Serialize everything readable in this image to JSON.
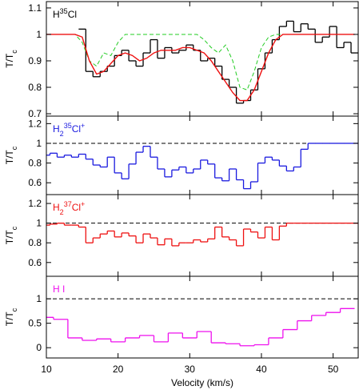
{
  "chart_data": [
    {
      "type": "line",
      "title_parts": [
        {
          "text": "H"
        },
        {
          "text": "35",
          "pos": "sup"
        },
        {
          "text": "Cl"
        }
      ],
      "title_color": "#000000",
      "ylabel_parts": [
        {
          "text": "T/T"
        },
        {
          "text": "c",
          "pos": "sub"
        }
      ],
      "xlim": [
        10,
        53.5
      ],
      "xticks": [
        10,
        20,
        30,
        40,
        50
      ],
      "ylim": [
        0.691,
        1.124
      ],
      "yticks": [
        1.1,
        1,
        0.9,
        0.8,
        0.7
      ],
      "series": [
        {
          "color": "#000000",
          "style": "steps",
          "x": [
            15,
            16,
            17,
            18,
            19,
            20,
            21,
            22,
            23,
            24,
            25,
            26,
            27,
            28,
            29,
            30,
            31,
            32,
            33,
            34,
            35,
            36,
            37,
            38,
            39,
            40,
            41,
            42,
            43,
            44,
            45,
            46,
            47,
            48,
            49,
            50,
            51,
            52,
            53
          ],
          "values": [
            1.02,
            0.86,
            0.84,
            0.86,
            0.88,
            0.92,
            0.94,
            0.9,
            0.88,
            0.93,
            0.98,
            0.91,
            0.95,
            0.93,
            0.94,
            0.96,
            0.94,
            0.9,
            0.91,
            0.88,
            0.83,
            0.8,
            0.74,
            0.75,
            0.79,
            0.87,
            0.93,
            0.98,
            1.03,
            1.05,
            1.01,
            1.04,
            1.02,
            0.97,
            0.99,
            1.03,
            0.95,
            0.97,
            0.93
          ]
        },
        {
          "color": "#22cc22",
          "style": "dashed",
          "x": [
            10,
            11,
            12,
            13,
            14,
            15,
            16,
            17,
            18,
            19,
            20,
            21,
            22,
            23,
            24,
            25,
            26,
            27,
            28,
            29,
            30,
            31,
            32,
            33,
            34,
            35,
            36,
            37,
            38,
            39,
            40,
            41,
            42,
            43,
            44,
            45,
            46,
            47,
            48,
            49,
            50,
            51,
            52,
            53
          ],
          "values": [
            1,
            1,
            1,
            1,
            1,
            0.97,
            0.9,
            0.88,
            0.93,
            0.92,
            0.97,
            1,
            1,
            1,
            1,
            1,
            1,
            1,
            1,
            1,
            1,
            1,
            0.98,
            0.95,
            0.93,
            0.96,
            0.9,
            0.8,
            0.79,
            0.86,
            0.95,
            0.99,
            1,
            1,
            1,
            1,
            1,
            1,
            1,
            1,
            1,
            1,
            1,
            1
          ]
        },
        {
          "color": "#ee1111",
          "style": "line",
          "x": [
            10,
            11,
            12,
            13,
            14,
            15,
            16,
            17,
            18,
            19,
            20,
            21,
            22,
            23,
            24,
            25,
            26,
            27,
            28,
            29,
            30,
            31,
            32,
            33,
            34,
            35,
            36,
            37,
            38,
            39,
            40,
            41,
            42,
            43,
            44,
            45,
            46,
            47,
            48,
            49,
            50,
            51,
            52,
            53
          ],
          "values": [
            1,
            1,
            1,
            1,
            1,
            0.99,
            0.9,
            0.85,
            0.86,
            0.89,
            0.92,
            0.93,
            0.92,
            0.9,
            0.91,
            0.93,
            0.94,
            0.94,
            0.94,
            0.95,
            0.95,
            0.94,
            0.93,
            0.9,
            0.86,
            0.82,
            0.78,
            0.75,
            0.75,
            0.79,
            0.86,
            0.93,
            0.98,
            1,
            1,
            1,
            1,
            1,
            1,
            1,
            1,
            1,
            1,
            1
          ]
        }
      ]
    },
    {
      "type": "line",
      "title_parts": [
        {
          "text": "H"
        },
        {
          "text": "2",
          "pos": "sub"
        },
        {
          "text": "35",
          "pos": "sup"
        },
        {
          "text": "Cl"
        },
        {
          "text": "+",
          "pos": "sup"
        }
      ],
      "title_color": "#1a1adf",
      "ylabel_parts": [
        {
          "text": "T/T"
        },
        {
          "text": "c",
          "pos": "sub"
        }
      ],
      "xlim": [
        10,
        53.5
      ],
      "xticks": [
        10,
        20,
        30,
        40,
        50
      ],
      "ylim": [
        0.48,
        1.276
      ],
      "yticks": [
        1.2,
        1,
        0.8,
        0.6
      ],
      "hline": 1,
      "series": [
        {
          "color": "#1a1adf",
          "style": "steps",
          "x": [
            10,
            11,
            12,
            13,
            14,
            15,
            16,
            17,
            18,
            19,
            20,
            21,
            22,
            23,
            24,
            25,
            26,
            27,
            28,
            29,
            30,
            31,
            32,
            33,
            34,
            35,
            36,
            37,
            38,
            39,
            40,
            41,
            42,
            43,
            44,
            45,
            46,
            47,
            48,
            49,
            50,
            51,
            52,
            53
          ],
          "values": [
            0.88,
            0.9,
            0.86,
            0.88,
            0.86,
            0.89,
            0.84,
            0.78,
            0.76,
            0.86,
            0.7,
            0.64,
            0.79,
            0.91,
            0.97,
            0.86,
            0.74,
            0.66,
            0.73,
            0.76,
            0.7,
            0.74,
            0.83,
            0.79,
            0.65,
            0.62,
            0.74,
            0.63,
            0.54,
            0.61,
            0.8,
            0.86,
            0.83,
            0.77,
            0.72,
            0.76,
            0.94,
            1,
            1,
            1,
            1,
            1,
            1,
            1
          ]
        }
      ]
    },
    {
      "type": "line",
      "title_parts": [
        {
          "text": "H"
        },
        {
          "text": "2",
          "pos": "sub"
        },
        {
          "text": "37",
          "pos": "sup"
        },
        {
          "text": "Cl"
        },
        {
          "text": "+",
          "pos": "sup"
        }
      ],
      "title_color": "#ee1111",
      "ylabel_parts": [
        {
          "text": "T/T"
        },
        {
          "text": "c",
          "pos": "sub"
        }
      ],
      "xlim": [
        10,
        53.5
      ],
      "xticks": [
        10,
        20,
        30,
        40,
        50
      ],
      "ylim": [
        0.46,
        1.29
      ],
      "yticks": [
        1.2,
        1,
        0.8,
        0.6
      ],
      "hline": 1,
      "series": [
        {
          "color": "#ee1111",
          "style": "steps",
          "x": [
            10,
            11,
            12,
            13,
            14,
            15,
            16,
            17,
            18,
            19,
            20,
            21,
            22,
            23,
            24,
            25,
            26,
            27,
            28,
            29,
            30,
            31,
            32,
            33,
            34,
            35,
            36,
            37,
            38,
            39,
            40,
            41,
            42,
            43,
            44,
            45,
            46,
            47,
            48,
            49,
            50,
            51,
            52,
            53
          ],
          "values": [
            0.98,
            0.99,
            1.0,
            0.98,
            0.98,
            0.96,
            0.8,
            0.85,
            0.89,
            0.92,
            0.86,
            0.9,
            0.87,
            0.8,
            0.89,
            0.85,
            0.78,
            0.84,
            0.77,
            0.8,
            0.8,
            0.83,
            0.81,
            0.84,
            0.96,
            0.86,
            0.83,
            0.77,
            0.94,
            0.91,
            0.85,
            0.96,
            0.83,
            0.97,
            1,
            1,
            1,
            1,
            1,
            1,
            1,
            1,
            1,
            1
          ]
        }
      ]
    },
    {
      "type": "line",
      "title_parts": [
        {
          "text": "H I"
        }
      ],
      "title_color": "#ee11ee",
      "ylabel_parts": [
        {
          "text": "T/T"
        },
        {
          "text": "c",
          "pos": "sub"
        }
      ],
      "xlabel": "Velocity (km/s)",
      "xlim": [
        10,
        53.5
      ],
      "xticks": [
        10,
        20,
        30,
        40,
        50
      ],
      "xtick_labels": true,
      "ylim": [
        -0.21,
        1.46
      ],
      "yticks": [
        1,
        0.5,
        0
      ],
      "hline": 1,
      "series": [
        {
          "color": "#ee11ee",
          "style": "steps",
          "x": [
            10,
            12,
            14,
            16,
            18,
            20,
            22,
            24,
            26,
            28,
            30,
            32,
            34,
            36,
            38,
            40,
            42,
            44,
            46,
            48,
            50,
            52
          ],
          "values": [
            0.62,
            0.58,
            0.2,
            0.15,
            0.18,
            0.12,
            0.2,
            0.25,
            0.12,
            0.3,
            0.2,
            0.33,
            0.1,
            0.08,
            0.04,
            0.06,
            0.2,
            0.37,
            0.55,
            0.66,
            0.72,
            0.8
          ]
        }
      ]
    }
  ]
}
